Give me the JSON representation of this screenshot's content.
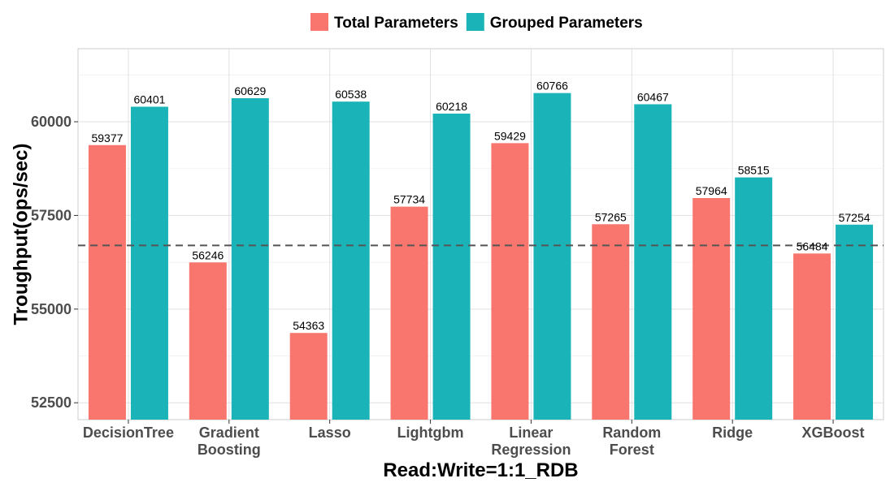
{
  "chart_data": {
    "type": "bar",
    "categories": [
      [
        "DecisionTree"
      ],
      [
        "Gradient",
        "Boosting"
      ],
      [
        "Lasso"
      ],
      [
        "Lightgbm"
      ],
      [
        "Linear",
        "Regression"
      ],
      [
        "Random",
        "Forest"
      ],
      [
        "Ridge"
      ],
      [
        "XGBoost"
      ]
    ],
    "series": [
      {
        "name": "Total Parameters",
        "color": "#f8766d",
        "values": [
          59377,
          56246,
          54363,
          57734,
          59429,
          57265,
          57964,
          56484
        ]
      },
      {
        "name": "Grouped Parameters",
        "color": "#1ab4b8",
        "values": [
          60401,
          60629,
          60538,
          60218,
          60766,
          60467,
          58515,
          57254
        ]
      }
    ],
    "title": "",
    "xlabel": "Read:Write=1:1_RDB",
    "ylabel": "Troughput(ops/sec)",
    "ylim": [
      52050,
      61950
    ],
    "yticks": [
      52500,
      55000,
      57500,
      60000
    ],
    "reference_line": {
      "value": 56700,
      "style": "dashed"
    },
    "grid": true,
    "legend_position": "top"
  }
}
